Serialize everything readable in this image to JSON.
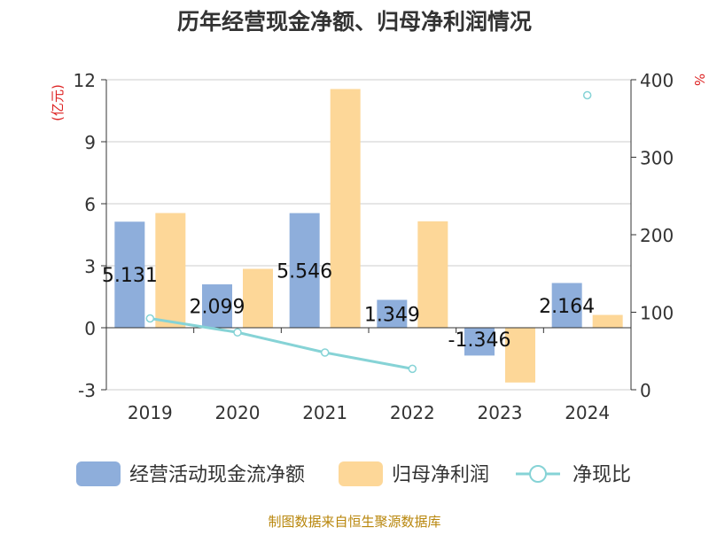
{
  "chart_data": {
    "type": "bar",
    "title": "历年经营现金净额、归母净利润情况",
    "categories": [
      "2019",
      "2020",
      "2021",
      "2022",
      "2023",
      "2024"
    ],
    "y_left": {
      "label": "(亿元)",
      "ylim": [
        -3,
        12
      ],
      "ticks": [
        -3,
        0,
        3,
        6,
        9,
        12
      ]
    },
    "y_right": {
      "label": "%",
      "ylim": [
        0,
        400
      ],
      "ticks": [
        0,
        100,
        200,
        300,
        400
      ]
    },
    "series": [
      {
        "name": "经营活动现金流净额",
        "type": "bar",
        "axis": "left",
        "color": "#8eaedb",
        "values": [
          5.131,
          2.099,
          5.546,
          1.349,
          -1.346,
          2.164
        ],
        "labels": [
          "5.131",
          "2.099",
          "5.546",
          "1.349",
          "-1.346",
          "2.164"
        ]
      },
      {
        "name": "归母净利润",
        "type": "bar",
        "axis": "left",
        "color": "#fdd798",
        "values": [
          5.55,
          2.85,
          11.55,
          5.15,
          -2.65,
          0.62
        ]
      },
      {
        "name": "净现比",
        "type": "line",
        "axis": "right",
        "color": "#86d3d6",
        "values": [
          92,
          74,
          48,
          27,
          null,
          380
        ]
      }
    ],
    "legend_position": "bottom",
    "grid": true,
    "source": "制图数据来自恒生聚源数据库"
  }
}
